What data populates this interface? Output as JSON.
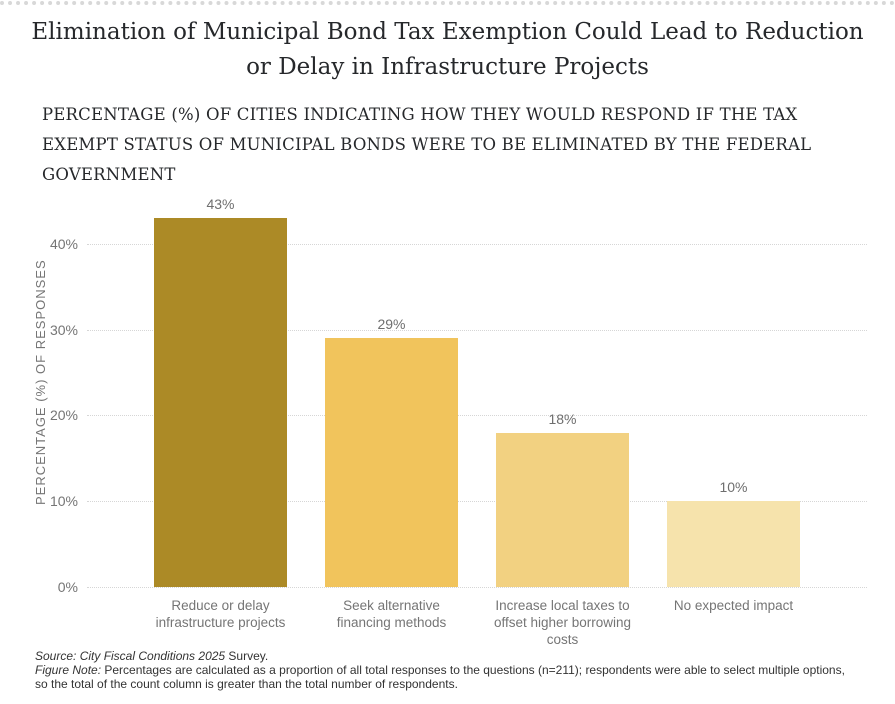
{
  "header": {
    "title": "Elimination of Municipal Bond Tax Exemption Could Lead to Reduction or Delay in Infrastructure Projects",
    "subtitle": "PERCENTAGE (%) OF CITIES INDICATING HOW THEY WOULD RESPOND IF THE TAX EXEMPT STATUS OF MUNICIPAL BONDS WERE TO BE ELIMINATED BY THE FEDERAL GOVERNMENT"
  },
  "chart_data": {
    "type": "bar",
    "title": "Elimination of Municipal Bond Tax Exemption Could Lead to Reduction or Delay in Infrastructure Projects",
    "subtitle": "PERCENTAGE (%) OF CITIES INDICATING HOW THEY WOULD RESPOND IF THE TAX EXEMPT STATUS OF MUNICIPAL BONDS WERE TO BE ELIMINATED BY THE FEDERAL GOVERNMENT",
    "categories": [
      "Reduce or delay infrastructure projects",
      "Seek alternative financing methods",
      "Increase local taxes to offset higher borrowing costs",
      "No expected impact"
    ],
    "values": [
      43,
      29,
      18,
      10
    ],
    "value_labels": [
      "43%",
      "29%",
      "18%",
      "10%"
    ],
    "bar_colors": [
      "#AC8A26",
      "#F1C45C",
      "#F2D181",
      "#F6E3AC"
    ],
    "xlabel": "",
    "ylabel": "PERCENTAGE (%) OF RESPONSES",
    "yticks": [
      0,
      10,
      20,
      30,
      40
    ],
    "ytick_labels": [
      "0%",
      "10%",
      "20%",
      "30%",
      "40%"
    ],
    "ylim": [
      0,
      45
    ],
    "grid": "horizontal-dotted",
    "legend": "none"
  },
  "footer": {
    "source_italic": "Source: City Fiscal Conditions 2025",
    "source_regular": " Survey.",
    "note_italic": "Figure Note:",
    "note_regular": " Percentages are calculated as a proportion of all total responses to the questions (n=211); respondents were able to select multiple options, so the total of the count column is greater than the total number of respondents."
  },
  "colors": {
    "background": "#FFFFFF",
    "title_text": "#26282B",
    "axis_text": "#757575",
    "value_label_text": "#6E6E6E",
    "gridline": "#D6D6D6",
    "footer_text": "#333333"
  }
}
